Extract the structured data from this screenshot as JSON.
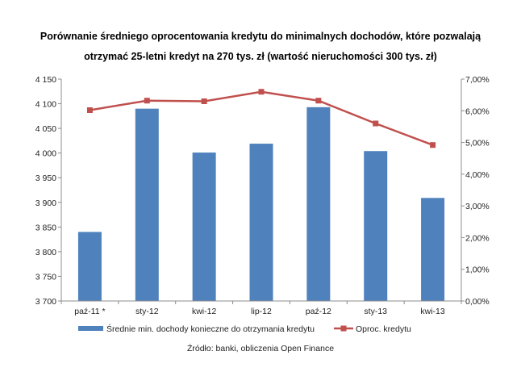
{
  "title_line1": "Porównanie średniego oprocentowania kredytu do minimalnych dochodów, które pozwalają",
  "title_line2": "otrzymać 25-letni kredyt na 270 tys. zł (wartość nieruchomości 300 tys. zł)",
  "source": "Źródło: banki, obliczenia Open Finance",
  "chart_data": {
    "type": "bar",
    "title": "Porównanie średniego oprocentowania kredytu do minimalnych dochodów, które pozwalają otrzymać 25-letni kredyt na 270 tys. zł (wartość nieruchomości 300 tys. zł)",
    "categories": [
      "paź-11 *",
      "sty-12",
      "kwi-12",
      "lip-12",
      "paź-12",
      "sty-13",
      "kwi-13"
    ],
    "series": [
      {
        "name": "Średnie min. dochody konieczne do otrzymania kredytu",
        "type": "bar",
        "axis": "left",
        "color": "#4F81BD",
        "values": [
          3840,
          4090,
          4001,
          4019,
          4093,
          4004,
          3909
        ]
      },
      {
        "name": "Oproc. kredytu",
        "type": "line",
        "axis": "right",
        "color": "#C0504D",
        "values": [
          6.02,
          6.32,
          6.3,
          6.6,
          6.32,
          5.6,
          4.92
        ]
      }
    ],
    "y_left": {
      "min": 3700,
      "max": 4150,
      "ticks": [
        "3 700",
        "3 750",
        "3 800",
        "3 850",
        "3 900",
        "3 950",
        "4 000",
        "4 050",
        "4 100",
        "4 150"
      ]
    },
    "y_right": {
      "min": 0,
      "max": 7,
      "ticks": [
        "0,00%",
        "1,00%",
        "2,00%",
        "3,00%",
        "4,00%",
        "5,00%",
        "6,00%",
        "7,00%"
      ]
    },
    "grid": false,
    "legend": "bottom"
  }
}
